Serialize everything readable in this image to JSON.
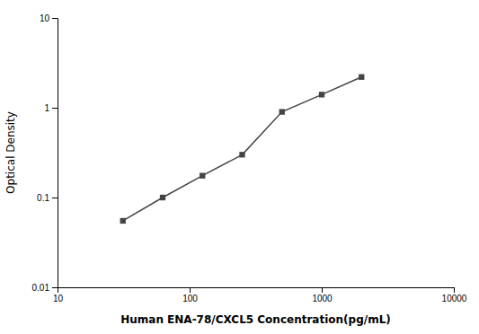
{
  "chart_data": {
    "type": "line",
    "x": [
      31.25,
      62.5,
      125,
      250,
      500,
      1000,
      2000
    ],
    "values": [
      0.055,
      0.1,
      0.175,
      0.3,
      0.9,
      1.4,
      2.2
    ],
    "color": "#444444",
    "marker": "square",
    "xlabel": "Human ENA-78/CXCL5 Concentration(pg/mL)",
    "ylabel": "Optical Density",
    "log": true,
    "xlim": [
      10,
      10000
    ],
    "ylim": [
      0.01,
      10
    ],
    "xticks": [
      10,
      100,
      1000,
      10000
    ],
    "yticks": [
      0.01,
      0.1,
      1,
      10
    ],
    "grid": false
  }
}
